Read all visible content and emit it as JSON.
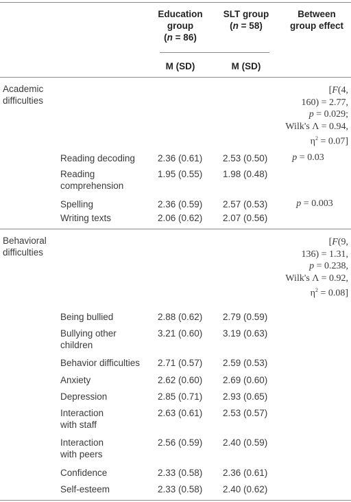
{
  "header": {
    "col_education": [
      "Education",
      "group",
      "(n = 86)"
    ],
    "col_slt": [
      "SLT group",
      "(n = 58)"
    ],
    "col_between": [
      "Between",
      "group effect"
    ],
    "sub_education": "M (SD)",
    "sub_slt": "M (SD)"
  },
  "sections": [
    {
      "name": [
        "Academic",
        "difficulties"
      ],
      "effect": [
        "[F(4,",
        "160) = 2.77,",
        "p = 0.029;",
        "Wilk's Λ = 0.94,",
        "η² = 0.07]"
      ],
      "rows": [
        {
          "label": [
            "Reading decoding"
          ],
          "edu": "2.36 (0.61)",
          "slt": "2.53 (0.50)",
          "effect": "p = 0.03"
        },
        {
          "label": [
            "Reading",
            "comprehension"
          ],
          "edu": "1.95 (0.55)",
          "slt": "1.98 (0.48)",
          "effect": ""
        },
        {
          "label": [
            "Spelling"
          ],
          "edu": "2.36 (0.59)",
          "slt": "2.57 (0.53)",
          "effect": "p = 0.003"
        },
        {
          "label": [
            "Writing texts"
          ],
          "edu": "2.06 (0.62)",
          "slt": "2.07 (0.56)",
          "effect": ""
        }
      ]
    },
    {
      "name": [
        "Behavioral",
        "difficulties"
      ],
      "effect": [
        "[F(9,",
        "136) = 1.31,",
        "p = 0.238,",
        "Wilk's Λ = 0.92,",
        "η² = 0.08]"
      ],
      "rows": [
        {
          "label": [
            "Being bullied"
          ],
          "edu": "2.88 (0.62)",
          "slt": "2.79 (0.59)",
          "effect": ""
        },
        {
          "label": [
            "Bullying other",
            "children"
          ],
          "edu": "3.21 (0.60)",
          "slt": "3.19 (0.63)",
          "effect": ""
        },
        {
          "label": [
            "Behavior difficulties"
          ],
          "edu": "2.71 (0.57)",
          "slt": "2.59 (0.53)",
          "effect": ""
        },
        {
          "label": [
            "Anxiety"
          ],
          "edu": "2.62 (0.60)",
          "slt": "2.69 (0.60)",
          "effect": ""
        },
        {
          "label": [
            "Depression"
          ],
          "edu": "2.85 (0.71)",
          "slt": "2.93 (0.65)",
          "effect": ""
        },
        {
          "label": [
            "Interaction",
            "with staff"
          ],
          "edu": "2.63 (0.61)",
          "slt": "2.53 (0.57)",
          "effect": ""
        },
        {
          "label": [
            "Interaction",
            "with peers"
          ],
          "edu": "2.56 (0.59)",
          "slt": "2.40 (0.59)",
          "effect": ""
        },
        {
          "label": [
            "Confidence"
          ],
          "edu": "2.33 (0.58)",
          "slt": "2.36 (0.61)",
          "effect": ""
        },
        {
          "label": [
            "Self-esteem"
          ],
          "edu": "2.33 (0.58)",
          "slt": "2.40 (0.62)",
          "effect": ""
        }
      ]
    }
  ]
}
